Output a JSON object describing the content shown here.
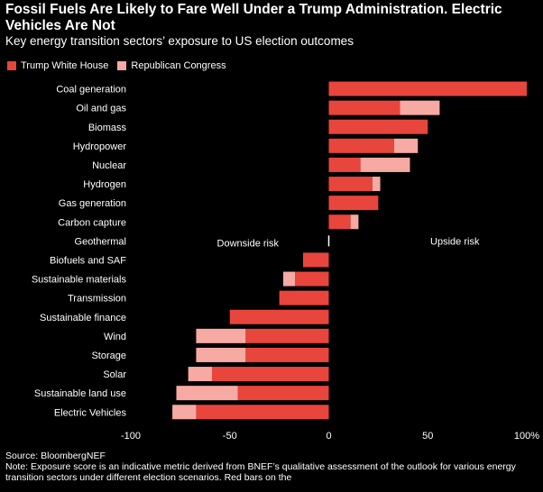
{
  "title": "Fossil Fuels Are Likely to Fare Well Under a Trump Administration. Electric Vehicles Are Not",
  "subtitle": "Key energy transition sectors’ exposure to US election outcomes",
  "source": "Source: BloombergNEF",
  "note": "Note: Exposure score is an indicative metric derived from BNEF’s qualitative assessment of the outlook for various energy transition sectors under different election scenarios. Red bars on the",
  "colors": {
    "trump": "#e8453c",
    "congress": "#f7a9a3",
    "background": "#000000",
    "text": "#ffffff"
  },
  "chart_data": {
    "type": "bar",
    "orientation": "horizontal",
    "stacked": true,
    "categories": [
      "Coal generation",
      "Oil and gas",
      "Biomass",
      "Hydropower",
      "Nuclear",
      "Hydrogen",
      "Gas generation",
      "Carbon capture",
      "Geothermal",
      "Biofuels and SAF",
      "Sustainable materials",
      "Transmission",
      "Sustainable finance",
      "Wind",
      "Storage",
      "Solar",
      "Sustainable land use",
      "Electric Vehicles"
    ],
    "series": [
      {
        "name": "Trump White House",
        "values": [
          100,
          36,
          50,
          33,
          16,
          22,
          25,
          11,
          0,
          -13,
          -17,
          -25,
          -50,
          -42,
          -42,
          -59,
          -46,
          -67
        ]
      },
      {
        "name": "Republican Congress",
        "values": [
          0,
          20,
          0,
          12,
          25,
          4,
          0,
          4,
          0,
          0,
          -6,
          0,
          0,
          -25,
          -25,
          -12,
          -31,
          -12
        ]
      }
    ],
    "xlim": [
      -100,
      100
    ],
    "xticks": [
      "-100",
      "-50",
      "0",
      "50",
      "100%"
    ],
    "xtick_values": [
      -100,
      -50,
      0,
      50,
      100
    ],
    "annotations": [
      "Downside risk",
      "Upside risk"
    ],
    "legend_position": "top-left",
    "grid": false
  }
}
